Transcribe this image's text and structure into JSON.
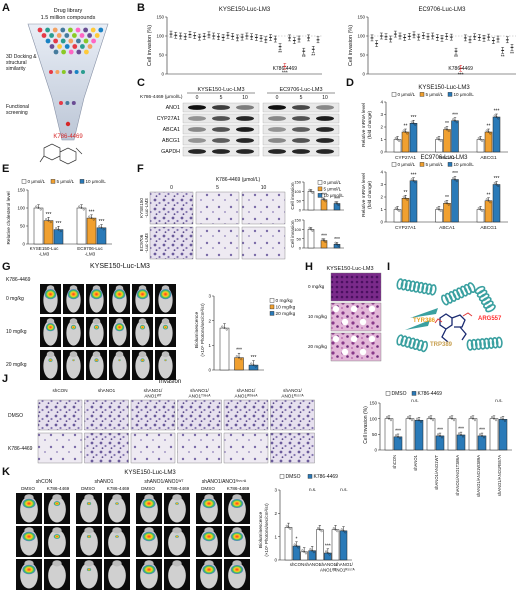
{
  "panels": {
    "A": {
      "letter": "A",
      "library": [
        "Drug library",
        "1.5 million compounds"
      ],
      "steps": [
        "3D Docking &",
        "structural",
        "similarity"
      ],
      "screen": [
        "Functional",
        "screening"
      ],
      "hit": "K786-4469",
      "hit_color": "#d62728"
    },
    "B": {
      "letter": "B",
      "left_title": "KYSE150-Luc-LM3",
      "right_title": "EC9706-Luc-LM3",
      "ylabel": "Cell invasion (%)",
      "hit": "K786-4469",
      "chart_data": [
        {
          "type": "scatter",
          "title": "KYSE150-Luc-LM3",
          "ylabel": "Cell invasion (%)",
          "ylim": [
            0,
            150
          ],
          "y": [
            105,
            102,
            100,
            98,
            104,
            101,
            97,
            99,
            103,
            100,
            98,
            96,
            102,
            99,
            95,
            97,
            100,
            98,
            96,
            94,
            90,
            96,
            92,
            72,
            20,
            95,
            88,
            92,
            60,
            95,
            65,
            90
          ]
        },
        {
          "type": "scatter",
          "title": "EC9706-Luc-LM3",
          "ylabel": "Cell invasion (%)",
          "ylim": [
            0,
            150
          ],
          "y": [
            95,
            80,
            100,
            98,
            92,
            105,
            100,
            96,
            99,
            103,
            97,
            101,
            98,
            100,
            96,
            94,
            99,
            97,
            60,
            15,
            95,
            90,
            98,
            96,
            94,
            97,
            88,
            92,
            62,
            90,
            70
          ]
        }
      ]
    },
    "C": {
      "letter": "C",
      "drug_label": "K786-4469 (μmol/L)",
      "groups": [
        "KYSE150-Luc-LM3",
        "EC9706-Luc-LM3"
      ],
      "doses": [
        "0",
        "5",
        "10",
        "0",
        "5",
        "10"
      ],
      "rows": [
        "ANO1",
        "CYP27A1",
        "ABCA1",
        "ABCG1",
        "GAPDH"
      ]
    },
    "D": {
      "letter": "D",
      "legend": [
        "0 μmol/L",
        "5 μmol/L",
        "10 μmol/L"
      ],
      "ylabel": [
        "Relative mRNA level",
        "(fold change)"
      ],
      "chart_data": [
        {
          "type": "bar",
          "title": "KYSE150-Luc-LM3",
          "categories": [
            "CYP27A1",
            "ABCA1",
            "ABCG1"
          ],
          "ylim": [
            0,
            4
          ],
          "series": [
            {
              "name": "0 μmol/L",
              "values": [
                1,
                1,
                1
              ]
            },
            {
              "name": "5 μmol/L",
              "values": [
                1.6,
                1.8,
                1.6
              ]
            },
            {
              "name": "10 μmol/L",
              "values": [
                2.3,
                2.5,
                2.8
              ]
            }
          ]
        },
        {
          "type": "bar",
          "title": "EC9706-Luc-LM3",
          "categories": [
            "CYP27A1",
            "ABCA1",
            "ABCG1"
          ],
          "ylim": [
            0,
            4
          ],
          "series": [
            {
              "name": "0 μmol/L",
              "values": [
                1,
                1,
                1
              ]
            },
            {
              "name": "5 μmol/L",
              "values": [
                1.9,
                1.5,
                1.7
              ]
            },
            {
              "name": "10 μmol/L",
              "values": [
                3.3,
                3.4,
                3.0
              ]
            }
          ]
        }
      ]
    },
    "E": {
      "letter": "E",
      "legend": [
        "0 μmol/L",
        "5 μmol/L",
        "10 μmol/L"
      ],
      "ylabel": "Relative cholesterol level",
      "chart_data": {
        "type": "bar",
        "categories": [
          "KYSE150-Luc-LM3",
          "EC9706-Luc-LM3"
        ],
        "ylim": [
          0,
          150
        ],
        "series": [
          {
            "name": "0 μmol/L",
            "values": [
              100,
              100
            ]
          },
          {
            "name": "5 μmol/L",
            "values": [
              65,
              72
            ]
          },
          {
            "name": "10 μmol/L",
            "values": [
              40,
              45
            ]
          }
        ]
      }
    },
    "F": {
      "letter": "F",
      "drug_label": "K786-4469 (μmol/L)",
      "doses": [
        "0",
        "5",
        "10"
      ],
      "rows": [
        "KYSE150 -Luc-LM3",
        "EC9706 -Luc-LM3"
      ],
      "legend": [
        "0 μmol/L",
        "5 μmol/L",
        "10 μmol/L"
      ],
      "ylabel": "Cell invasion",
      "chart_data": [
        {
          "type": "bar",
          "categories": [
            "0",
            "5",
            "10"
          ],
          "values": [
            100,
            55,
            35
          ],
          "ylim": [
            0,
            150
          ]
        },
        {
          "type": "bar",
          "categories": [
            "0",
            "5",
            "10"
          ],
          "values": [
            100,
            40,
            20
          ],
          "ylim": [
            0,
            150
          ]
        }
      ]
    },
    "G": {
      "letter": "G",
      "title": "KYSE150-Luc-LM3",
      "rows": [
        "K786-4469",
        "0 mg/kg",
        "10 mg/kg",
        "20 mg/kg"
      ],
      "legend": [
        "0 mg/kg",
        "10 mg/kg",
        "20 mg/kg"
      ],
      "ylabel": [
        "Bioluminescence",
        "(×10⁶ Photons/sec/cm²/sr)"
      ],
      "chart_data": {
        "type": "bar",
        "categories": [
          "0 mg/kg",
          "10 mg/kg",
          "20 mg/kg"
        ],
        "values": [
          1.7,
          0.5,
          0.2
        ],
        "ylim": [
          0,
          3
        ]
      }
    },
    "H": {
      "letter": "H",
      "title": "KYSE150-Luc-LM3",
      "rows": [
        "0 mg/kg",
        "10 mg/kg",
        "20 mg/kg"
      ]
    },
    "I": {
      "letter": "I",
      "residues": [
        "ARG557",
        "TYR386",
        "TRP389"
      ],
      "residue_colors": [
        "#ff3030",
        "#e8a020",
        "#c8a050"
      ]
    },
    "J": {
      "letter": "J",
      "title": "Invasion",
      "columns": [
        "shCON",
        "shANO1",
        "shANO1/ ANO1ᵂᵀ",
        "shANO1/ ANO1ᵀ³⁸⁶ᴬ",
        "shANO1/ ANO1ᵂ³⁸⁹ᴬ",
        "shANO1/ ANO1ᴿ⁵⁵⁷ᴬ"
      ],
      "rows": [
        "DMSO",
        "K786-4469"
      ],
      "legend": [
        "DMSO",
        "K786-4469"
      ],
      "ylabel": "Cell invasion (%)",
      "ns": "n.s.",
      "chart_data": {
        "type": "bar",
        "categories": [
          "shCON",
          "shANO1",
          "shANO1/ANO1WT",
          "shANO1/ANO1T386A",
          "shANO1/ANO1W389A",
          "shANO1/ANO1R557A"
        ],
        "ylim": [
          0,
          150
        ],
        "series": [
          {
            "name": "DMSO",
            "values": [
              100,
              100,
              100,
              100,
              100,
              100
            ]
          },
          {
            "name": "K786-4469",
            "values": [
              42,
              95,
              45,
              48,
              45,
              98
            ]
          }
        ]
      }
    },
    "K": {
      "letter": "K",
      "title": "KYSE150-Luc-LM3",
      "groups": [
        "shCON",
        "shANO1",
        "shANO1/ANO1ᵂᵀ",
        "shANO1/ANO1ᴿ⁵⁵⁷ᴬ"
      ],
      "sub": [
        "DMSO",
        "K786-4469"
      ],
      "legend": [
        "DMSO",
        "K786-4469"
      ],
      "ylabel": [
        "Bioluminescence",
        "(×10⁶ Photons/sec/cm²/sr)"
      ],
      "xcats": [
        "shCON",
        "shANO1",
        "shANO1/ ANO1ᵂᵀ",
        "shANO1/ ANO1ᴿ⁵⁵⁷ᴬ"
      ],
      "ns": "n.s.",
      "chart_data": {
        "type": "bar",
        "categories": [
          "shCON",
          "shANO1",
          "shANO1/ANO1WT",
          "shANO1/ANO1R557A"
        ],
        "ylim": [
          0,
          3
        ],
        "series": [
          {
            "name": "DMSO",
            "values": [
              1.4,
              0.35,
              1.3,
              1.3
            ]
          },
          {
            "name": "K786-4469",
            "values": [
              0.6,
              0.4,
              0.3,
              1.25
            ]
          }
        ]
      }
    },
    "colors": {
      "white": "#ffffff",
      "orange": "#f0a030",
      "blue": "#2a7ab8",
      "red": "#d62728"
    }
  }
}
